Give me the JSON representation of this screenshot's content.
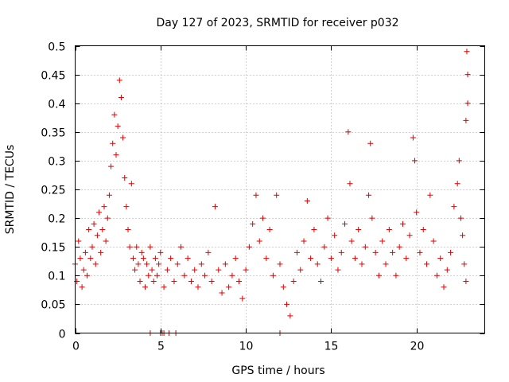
{
  "chart_data": {
    "type": "scatter",
    "title": "Day 127 of 2023, SRMTID for receiver p032",
    "xlabel": "GPS time / hours",
    "ylabel": "SRMTID / TECUs",
    "xlim": [
      0,
      24
    ],
    "ylim": [
      0,
      0.5
    ],
    "x_ticks": [
      0,
      5,
      10,
      15,
      20
    ],
    "x_tick_labels": [
      "0",
      "5",
      "10",
      "15",
      "20"
    ],
    "y_ticks": [
      0,
      0.05,
      0.1,
      0.15,
      0.2,
      0.25,
      0.3,
      0.35,
      0.4,
      0.45,
      0.5
    ],
    "y_tick_labels": [
      "0",
      "0.05",
      "0.1",
      "0.15",
      "0.2",
      "0.25",
      "0.3",
      "0.35",
      "0.4",
      "0.45",
      "0.5"
    ],
    "grid": true,
    "marker": "+",
    "color": "#e00000",
    "series": [
      {
        "name": "SRMTID",
        "points": [
          [
            0.0,
            0.12
          ],
          [
            0.1,
            0.09
          ],
          [
            0.2,
            0.16
          ],
          [
            0.3,
            0.13
          ],
          [
            0.4,
            0.08
          ],
          [
            0.5,
            0.11
          ],
          [
            0.6,
            0.14
          ],
          [
            0.7,
            0.1
          ],
          [
            0.8,
            0.18
          ],
          [
            0.9,
            0.13
          ],
          [
            1.0,
            0.15
          ],
          [
            1.1,
            0.19
          ],
          [
            1.2,
            0.12
          ],
          [
            1.3,
            0.17
          ],
          [
            1.4,
            0.21
          ],
          [
            1.5,
            0.14
          ],
          [
            1.6,
            0.18
          ],
          [
            1.7,
            0.22
          ],
          [
            1.8,
            0.16
          ],
          [
            1.9,
            0.2
          ],
          [
            2.0,
            0.24
          ],
          [
            2.1,
            0.29
          ],
          [
            2.2,
            0.33
          ],
          [
            2.3,
            0.38
          ],
          [
            2.4,
            0.31
          ],
          [
            2.5,
            0.36
          ],
          [
            2.6,
            0.44
          ],
          [
            2.7,
            0.41
          ],
          [
            2.8,
            0.34
          ],
          [
            2.9,
            0.27
          ],
          [
            3.0,
            0.22
          ],
          [
            3.1,
            0.18
          ],
          [
            3.2,
            0.15
          ],
          [
            3.3,
            0.26
          ],
          [
            3.4,
            0.13
          ],
          [
            3.5,
            0.11
          ],
          [
            3.6,
            0.15
          ],
          [
            3.7,
            0.12
          ],
          [
            3.8,
            0.09
          ],
          [
            3.9,
            0.14
          ],
          [
            4.0,
            0.13
          ],
          [
            4.1,
            0.08
          ],
          [
            4.2,
            0.12
          ],
          [
            4.3,
            0.1
          ],
          [
            4.4,
            0.15
          ],
          [
            4.5,
            0.11
          ],
          [
            4.6,
            0.09
          ],
          [
            4.7,
            0.13
          ],
          [
            4.8,
            0.1
          ],
          [
            4.9,
            0.12
          ],
          [
            5.0,
            0.14
          ],
          [
            5.2,
            0.08
          ],
          [
            5.4,
            0.11
          ],
          [
            5.6,
            0.13
          ],
          [
            5.8,
            0.09
          ],
          [
            6.0,
            0.12
          ],
          [
            6.2,
            0.15
          ],
          [
            6.4,
            0.1
          ],
          [
            6.6,
            0.13
          ],
          [
            6.8,
            0.09
          ],
          [
            7.0,
            0.11
          ],
          [
            7.2,
            0.08
          ],
          [
            7.4,
            0.12
          ],
          [
            7.6,
            0.1
          ],
          [
            7.8,
            0.14
          ],
          [
            8.0,
            0.09
          ],
          [
            8.2,
            0.22
          ],
          [
            8.4,
            0.11
          ],
          [
            8.6,
            0.07
          ],
          [
            8.8,
            0.12
          ],
          [
            9.0,
            0.08
          ],
          [
            9.2,
            0.1
          ],
          [
            9.4,
            0.13
          ],
          [
            9.6,
            0.09
          ],
          [
            9.8,
            0.06
          ],
          [
            10.0,
            0.11
          ],
          [
            10.2,
            0.15
          ],
          [
            10.4,
            0.19
          ],
          [
            10.6,
            0.24
          ],
          [
            10.8,
            0.16
          ],
          [
            11.0,
            0.2
          ],
          [
            11.2,
            0.13
          ],
          [
            11.4,
            0.18
          ],
          [
            11.6,
            0.1
          ],
          [
            11.8,
            0.24
          ],
          [
            12.0,
            0.12
          ],
          [
            12.2,
            0.08
          ],
          [
            12.4,
            0.05
          ],
          [
            12.6,
            0.03
          ],
          [
            12.8,
            0.09
          ],
          [
            13.0,
            0.14
          ],
          [
            13.2,
            0.11
          ],
          [
            13.4,
            0.16
          ],
          [
            13.6,
            0.23
          ],
          [
            13.8,
            0.13
          ],
          [
            14.0,
            0.18
          ],
          [
            14.2,
            0.12
          ],
          [
            14.4,
            0.09
          ],
          [
            14.6,
            0.15
          ],
          [
            14.8,
            0.2
          ],
          [
            15.0,
            0.13
          ],
          [
            15.2,
            0.17
          ],
          [
            15.4,
            0.11
          ],
          [
            15.6,
            0.14
          ],
          [
            15.8,
            0.19
          ],
          [
            16.0,
            0.35
          ],
          [
            16.1,
            0.26
          ],
          [
            16.2,
            0.16
          ],
          [
            16.4,
            0.13
          ],
          [
            16.6,
            0.18
          ],
          [
            16.8,
            0.12
          ],
          [
            17.0,
            0.15
          ],
          [
            17.2,
            0.24
          ],
          [
            17.3,
            0.33
          ],
          [
            17.4,
            0.2
          ],
          [
            17.6,
            0.14
          ],
          [
            17.8,
            0.1
          ],
          [
            18.0,
            0.16
          ],
          [
            18.2,
            0.12
          ],
          [
            18.4,
            0.18
          ],
          [
            18.6,
            0.14
          ],
          [
            18.8,
            0.1
          ],
          [
            19.0,
            0.15
          ],
          [
            19.2,
            0.19
          ],
          [
            19.4,
            0.13
          ],
          [
            19.6,
            0.17
          ],
          [
            19.8,
            0.34
          ],
          [
            19.9,
            0.3
          ],
          [
            20.0,
            0.21
          ],
          [
            20.2,
            0.14
          ],
          [
            20.4,
            0.18
          ],
          [
            20.6,
            0.12
          ],
          [
            20.8,
            0.24
          ],
          [
            21.0,
            0.16
          ],
          [
            21.2,
            0.1
          ],
          [
            21.4,
            0.13
          ],
          [
            21.6,
            0.08
          ],
          [
            21.8,
            0.11
          ],
          [
            22.0,
            0.14
          ],
          [
            22.2,
            0.22
          ],
          [
            22.4,
            0.26
          ],
          [
            22.5,
            0.3
          ],
          [
            22.6,
            0.2
          ],
          [
            22.7,
            0.17
          ],
          [
            22.8,
            0.12
          ],
          [
            22.9,
            0.09
          ],
          [
            22.95,
            0.49
          ],
          [
            23.0,
            0.45
          ],
          [
            23.0,
            0.4
          ],
          [
            22.9,
            0.37
          ],
          [
            4.4,
            0.0
          ],
          [
            5.0,
            0.0
          ],
          [
            5.1,
            0.0
          ],
          [
            5.2,
            0.0
          ],
          [
            5.5,
            0.0
          ],
          [
            5.9,
            0.0
          ],
          [
            12.0,
            0.0
          ]
        ]
      }
    ]
  }
}
